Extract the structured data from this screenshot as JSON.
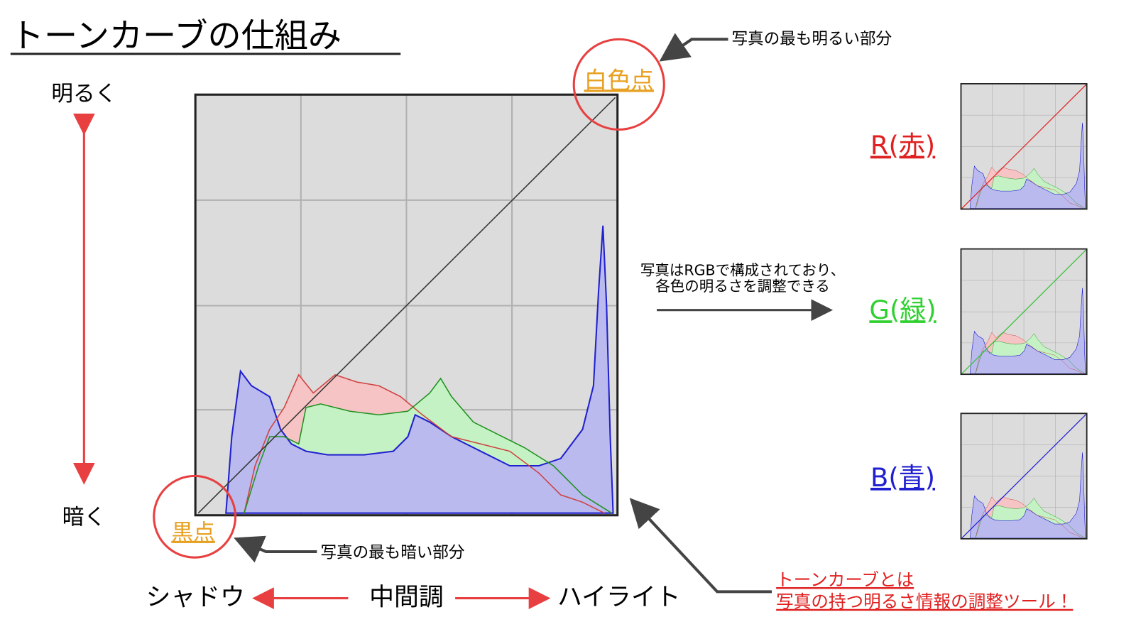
{
  "header": {
    "title": "トーンカーブの仕組み"
  },
  "vertical_axis": {
    "top": "明るく",
    "bottom": "暗く"
  },
  "points": {
    "white": "白色点",
    "white_note": "写真の最も明るい部分",
    "black": "黒点",
    "black_note": "写真の最も暗い部分"
  },
  "rgb_note": [
    "写真はRGBで構成されており、",
    "各色の明るさを調整できる"
  ],
  "channels": [
    "R(赤)",
    "G(緑)",
    "B(青)"
  ],
  "horizontal_axis": {
    "left": "シャドウ",
    "middle": "中間調",
    "right": "ハイライト"
  },
  "definition": [
    "トーンカーブとは",
    "写真の持つ明るさ情報の調整ツール！"
  ]
}
